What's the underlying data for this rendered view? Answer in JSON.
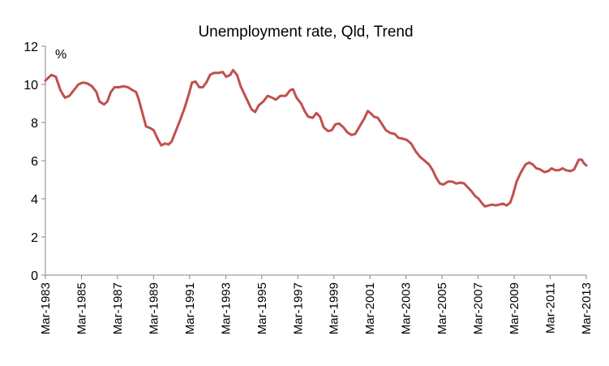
{
  "chart_data": {
    "type": "line",
    "title": "Unemployment rate, Qld, Trend",
    "ylabel": "%",
    "xlabel": "",
    "ylim": [
      0,
      12
    ],
    "yticks": [
      0,
      2,
      4,
      6,
      8,
      10,
      12
    ],
    "xlim": [
      1983.17,
      2013.17
    ],
    "xtick_labels": [
      "Mar-1983",
      "Mar-1985",
      "Mar-1987",
      "Mar-1989",
      "Mar-1991",
      "Mar-1993",
      "Mar-1995",
      "Mar-1997",
      "Mar-1999",
      "Mar-2001",
      "Mar-2003",
      "Mar-2005",
      "Mar-2007",
      "Mar-2009",
      "Mar-2011",
      "Mar-2013"
    ],
    "grid": false,
    "colors": {
      "series": "#c0504d"
    },
    "series": [
      {
        "values": [
          [
            1983.17,
            10.2
          ],
          [
            1983.5,
            10.5
          ],
          [
            1983.75,
            10.4
          ],
          [
            1984.0,
            9.7
          ],
          [
            1984.25,
            9.3
          ],
          [
            1984.5,
            9.4
          ],
          [
            1984.75,
            9.7
          ],
          [
            1985.0,
            10.0
          ],
          [
            1985.25,
            10.1
          ],
          [
            1985.5,
            10.05
          ],
          [
            1985.75,
            9.9
          ],
          [
            1986.0,
            9.6
          ],
          [
            1986.17,
            9.1
          ],
          [
            1986.42,
            8.95
          ],
          [
            1986.6,
            9.1
          ],
          [
            1986.8,
            9.6
          ],
          [
            1987.0,
            9.85
          ],
          [
            1987.25,
            9.85
          ],
          [
            1987.5,
            9.9
          ],
          [
            1987.75,
            9.85
          ],
          [
            1988.0,
            9.7
          ],
          [
            1988.2,
            9.6
          ],
          [
            1988.35,
            9.2
          ],
          [
            1988.55,
            8.5
          ],
          [
            1988.75,
            7.8
          ],
          [
            1989.0,
            7.7
          ],
          [
            1989.17,
            7.6
          ],
          [
            1989.42,
            7.1
          ],
          [
            1989.6,
            6.8
          ],
          [
            1989.8,
            6.9
          ],
          [
            1990.0,
            6.85
          ],
          [
            1990.17,
            7.0
          ],
          [
            1990.42,
            7.6
          ],
          [
            1990.67,
            8.2
          ],
          [
            1990.9,
            8.8
          ],
          [
            1991.1,
            9.4
          ],
          [
            1991.3,
            10.1
          ],
          [
            1991.5,
            10.15
          ],
          [
            1991.7,
            9.85
          ],
          [
            1991.9,
            9.85
          ],
          [
            1992.1,
            10.1
          ],
          [
            1992.3,
            10.5
          ],
          [
            1992.5,
            10.6
          ],
          [
            1992.75,
            10.6
          ],
          [
            1993.0,
            10.65
          ],
          [
            1993.2,
            10.4
          ],
          [
            1993.42,
            10.5
          ],
          [
            1993.58,
            10.75
          ],
          [
            1993.8,
            10.5
          ],
          [
            1994.0,
            9.9
          ],
          [
            1994.2,
            9.5
          ],
          [
            1994.4,
            9.1
          ],
          [
            1994.6,
            8.7
          ],
          [
            1994.8,
            8.55
          ],
          [
            1995.0,
            8.9
          ],
          [
            1995.25,
            9.1
          ],
          [
            1995.5,
            9.4
          ],
          [
            1995.75,
            9.3
          ],
          [
            1995.95,
            9.2
          ],
          [
            1996.2,
            9.4
          ],
          [
            1996.5,
            9.4
          ],
          [
            1996.75,
            9.7
          ],
          [
            1996.9,
            9.75
          ],
          [
            1997.1,
            9.3
          ],
          [
            1997.35,
            9.0
          ],
          [
            1997.55,
            8.6
          ],
          [
            1997.75,
            8.3
          ],
          [
            1998.0,
            8.25
          ],
          [
            1998.2,
            8.5
          ],
          [
            1998.4,
            8.3
          ],
          [
            1998.6,
            7.75
          ],
          [
            1998.85,
            7.55
          ],
          [
            1999.05,
            7.6
          ],
          [
            1999.25,
            7.9
          ],
          [
            1999.45,
            7.95
          ],
          [
            1999.7,
            7.75
          ],
          [
            1999.9,
            7.5
          ],
          [
            2000.15,
            7.35
          ],
          [
            2000.35,
            7.4
          ],
          [
            2000.6,
            7.8
          ],
          [
            2000.85,
            8.2
          ],
          [
            2001.05,
            8.6
          ],
          [
            2001.2,
            8.5
          ],
          [
            2001.4,
            8.3
          ],
          [
            2001.6,
            8.25
          ],
          [
            2001.85,
            7.9
          ],
          [
            2002.05,
            7.6
          ],
          [
            2002.3,
            7.45
          ],
          [
            2002.55,
            7.4
          ],
          [
            2002.75,
            7.2
          ],
          [
            2003.0,
            7.15
          ],
          [
            2003.2,
            7.1
          ],
          [
            2003.45,
            6.9
          ],
          [
            2003.7,
            6.5
          ],
          [
            2003.95,
            6.2
          ],
          [
            2004.2,
            6.0
          ],
          [
            2004.45,
            5.8
          ],
          [
            2004.65,
            5.5
          ],
          [
            2004.85,
            5.1
          ],
          [
            2005.05,
            4.8
          ],
          [
            2005.25,
            4.75
          ],
          [
            2005.5,
            4.9
          ],
          [
            2005.75,
            4.9
          ],
          [
            2005.95,
            4.8
          ],
          [
            2006.2,
            4.85
          ],
          [
            2006.4,
            4.8
          ],
          [
            2006.6,
            4.6
          ],
          [
            2006.8,
            4.4
          ],
          [
            2007.0,
            4.15
          ],
          [
            2007.2,
            4.0
          ],
          [
            2007.4,
            3.75
          ],
          [
            2007.55,
            3.6
          ],
          [
            2007.75,
            3.65
          ],
          [
            2007.95,
            3.7
          ],
          [
            2008.15,
            3.65
          ],
          [
            2008.35,
            3.7
          ],
          [
            2008.55,
            3.75
          ],
          [
            2008.75,
            3.65
          ],
          [
            2008.95,
            3.8
          ],
          [
            2009.1,
            4.2
          ],
          [
            2009.3,
            4.9
          ],
          [
            2009.55,
            5.4
          ],
          [
            2009.8,
            5.8
          ],
          [
            2010.0,
            5.9
          ],
          [
            2010.2,
            5.8
          ],
          [
            2010.4,
            5.6
          ],
          [
            2010.6,
            5.55
          ],
          [
            2010.85,
            5.4
          ],
          [
            2011.05,
            5.45
          ],
          [
            2011.25,
            5.6
          ],
          [
            2011.45,
            5.5
          ],
          [
            2011.65,
            5.5
          ],
          [
            2011.85,
            5.6
          ],
          [
            2012.05,
            5.5
          ],
          [
            2012.3,
            5.45
          ],
          [
            2012.5,
            5.55
          ],
          [
            2012.75,
            6.05
          ],
          [
            2012.92,
            6.05
          ],
          [
            2013.05,
            5.85
          ],
          [
            2013.17,
            5.75
          ]
        ]
      }
    ]
  }
}
